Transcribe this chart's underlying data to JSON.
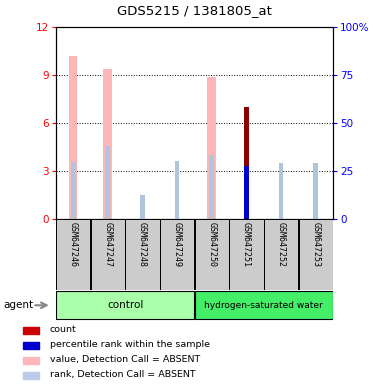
{
  "title": "GDS5215 / 1381805_at",
  "samples": [
    "GSM647246",
    "GSM647247",
    "GSM647248",
    "GSM647249",
    "GSM647250",
    "GSM647251",
    "GSM647252",
    "GSM647253"
  ],
  "value_absent": [
    10.2,
    9.35,
    null,
    null,
    8.85,
    null,
    null,
    null
  ],
  "rank_absent": [
    3.55,
    4.55,
    1.5,
    3.6,
    4.0,
    null,
    3.5,
    3.5
  ],
  "rank_absent_small": [
    3.3,
    4.2,
    1.15,
    2.8,
    3.55,
    null,
    2.7,
    2.65
  ],
  "count_value": [
    null,
    null,
    null,
    null,
    null,
    7.0,
    null,
    null
  ],
  "percentile_rank": [
    null,
    null,
    null,
    null,
    null,
    3.3,
    null,
    null
  ],
  "ylim_left": [
    0,
    12
  ],
  "yticks_left": [
    0,
    3,
    6,
    9,
    12
  ],
  "yticks_right": [
    0,
    25,
    50,
    75,
    100
  ],
  "ytick_labels_right": [
    "0",
    "25",
    "50",
    "75",
    "100%"
  ],
  "color_value_absent": "#FFB6B6",
  "color_rank_absent": "#B0C4DE",
  "color_count": "#8B0000",
  "color_percentile": "#0000CC",
  "control_color": "#AAFFAA",
  "h2_color": "#44EE66",
  "bar_width": 0.25,
  "legend_items": [
    {
      "label": "count",
      "color": "#CC0000"
    },
    {
      "label": "percentile rank within the sample",
      "color": "#0000CC"
    },
    {
      "label": "value, Detection Call = ABSENT",
      "color": "#FFB6B6"
    },
    {
      "label": "rank, Detection Call = ABSENT",
      "color": "#B8CCE8"
    }
  ]
}
